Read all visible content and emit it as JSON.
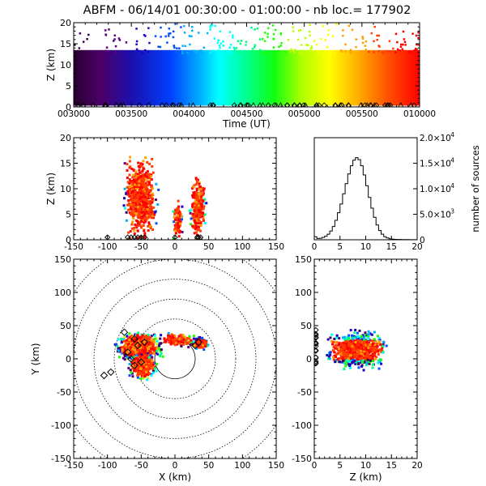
{
  "title": "ABFM - 06/14/01 00:30:00 - 01:00:00 - nb loc.= 177902",
  "chart_data": [
    {
      "id": "time-height",
      "type": "scatter",
      "xlabel": "Time (UT)",
      "ylabel": "Z (km)",
      "x_ticks": [
        "003000",
        "003500",
        "004000",
        "004500",
        "005000",
        "005500",
        "010000"
      ],
      "y_ticks": [
        "0",
        "5",
        "10",
        "15",
        "20"
      ],
      "ylim": [
        0,
        20
      ],
      "color_scale": "rainbow by time (purple = 003000, red = 010000)"
    },
    {
      "id": "x-z",
      "type": "scatter",
      "xlabel": "",
      "ylabel": "Z (km)",
      "xlim": [
        -150,
        150
      ],
      "ylim": [
        0,
        20
      ],
      "x_ticks": [
        "-150",
        "-100",
        "-50",
        "0",
        "50",
        "100",
        "150"
      ],
      "y_ticks": [
        "0",
        "5",
        "10",
        "15",
        "20"
      ],
      "clusters": [
        {
          "x_range": [
            -80,
            -25
          ],
          "z_range": [
            0,
            17
          ]
        },
        {
          "x_range": [
            20,
            45
          ],
          "z_range": [
            0,
            13
          ]
        },
        {
          "x_range": [
            -5,
            10
          ],
          "z_range": [
            0,
            8
          ]
        }
      ]
    },
    {
      "id": "altitude-histogram",
      "type": "bar",
      "xlabel": "",
      "ylabel": "number of sources",
      "xlim": [
        0,
        20
      ],
      "ylim": [
        0,
        20000
      ],
      "x_ticks": [
        "0",
        "5",
        "10",
        "15",
        "20"
      ],
      "y_tick_labels": [
        "0",
        "5.0×10",
        "1.0×10",
        "1.5×10",
        "2.0×10"
      ],
      "y_tick_exponents": [
        "",
        "3",
        "4",
        "4",
        "4"
      ],
      "bin_width_km": 0.5,
      "bin_start_km": [
        0,
        0.5,
        1,
        1.5,
        2,
        2.5,
        3,
        3.5,
        4,
        4.5,
        5,
        5.5,
        6,
        6.5,
        7,
        7.5,
        8,
        8.5,
        9,
        9.5,
        10,
        10.5,
        11,
        11.5,
        12,
        12.5,
        13,
        13.5,
        14,
        14.5,
        15,
        15.5,
        16,
        16.5,
        17,
        17.5,
        18,
        18.5,
        19,
        19.5
      ],
      "values": [
        600,
        250,
        300,
        450,
        700,
        1100,
        1700,
        2600,
        3800,
        5300,
        7000,
        9000,
        11000,
        12900,
        14500,
        15600,
        16100,
        15700,
        14500,
        12700,
        10600,
        8300,
        6200,
        4400,
        2900,
        1800,
        1100,
        600,
        350,
        200,
        120,
        80,
        60,
        50,
        40,
        30,
        30,
        20,
        20,
        10
      ]
    },
    {
      "id": "plan-view",
      "type": "scatter",
      "xlabel": "X (km)",
      "ylabel": "Y (km)",
      "xlim": [
        -150,
        150
      ],
      "ylim": [
        -150,
        150
      ],
      "x_ticks": [
        "-150",
        "-100",
        "-50",
        "0",
        "50",
        "100",
        "150"
      ],
      "y_ticks": [
        "-150",
        "-100",
        "-50",
        "0",
        "50",
        "100",
        "150"
      ],
      "range_rings_km": [
        30,
        60,
        90,
        120,
        150,
        180
      ]
    },
    {
      "id": "z-y",
      "type": "scatter",
      "xlabel": "Z (km)",
      "ylabel": "",
      "xlim": [
        0,
        20
      ],
      "ylim": [
        -150,
        150
      ],
      "x_ticks": [
        "0",
        "5",
        "10",
        "15",
        "20"
      ],
      "y_ticks": [
        "-150",
        "-100",
        "-50",
        "0",
        "50",
        "100",
        "150"
      ]
    }
  ]
}
